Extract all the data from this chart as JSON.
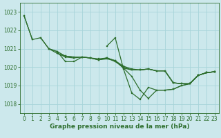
{
  "title": "Graphe pression niveau de la mer (hPa)",
  "background_color": "#cce8ec",
  "grid_color": "#a8d4da",
  "line_color": "#2d6e2d",
  "xlim": [
    -0.5,
    23.5
  ],
  "ylim": [
    1017.5,
    1023.5
  ],
  "yticks": [
    1018,
    1019,
    1020,
    1021,
    1022,
    1023
  ],
  "xticks": [
    0,
    1,
    2,
    3,
    4,
    5,
    6,
    7,
    8,
    9,
    10,
    11,
    12,
    13,
    14,
    15,
    16,
    17,
    18,
    19,
    20,
    21,
    22,
    23
  ],
  "series": [
    [
      1022.8,
      1021.5,
      null,
      null,
      null,
      null,
      null,
      null,
      null,
      null,
      null,
      null,
      null,
      null,
      null,
      null,
      null,
      null,
      null,
      null,
      null,
      null,
      null,
      null
    ],
    [
      null,
      null,
      1021.6,
      1021.0,
      1020.85,
      1020.3,
      1020.3,
      1020.55,
      1020.5,
      1020.45,
      1020.5,
      1020.3,
      1020.0,
      1019.85,
      1019.85,
      1019.9,
      1019.8,
      1019.8,
      1019.15,
      1019.1,
      1019.1,
      1019.55,
      1019.7,
      1019.75
    ],
    [
      null,
      null,
      null,
      1021.0,
      1020.75,
      1020.6,
      1020.55,
      1020.55,
      1020.5,
      1020.4,
      1020.45,
      1020.35,
      1020.05,
      1019.9,
      1019.85,
      1019.9,
      1019.8,
      1019.8,
      1019.15,
      1019.1,
      1019.1,
      1019.55,
      1019.7,
      1019.75
    ],
    [
      null,
      null,
      null,
      null,
      1020.75,
      1020.55,
      1020.5,
      1020.55,
      1020.5,
      1020.4,
      1020.5,
      1020.35,
      1019.95,
      1019.85,
      1019.85,
      1019.9,
      1019.8,
      1019.8,
      1019.15,
      1019.1,
      1019.1,
      1019.55,
      1019.7,
      1019.75
    ],
    [
      null,
      null,
      null,
      null,
      null,
      null,
      null,
      null,
      null,
      null,
      1021.15,
      1021.6,
      1019.9,
      1018.6,
      1018.25,
      1018.9,
      1018.75,
      1018.75,
      1018.8,
      1019.0,
      1019.1,
      1019.55,
      1019.7,
      1019.75
    ]
  ],
  "series2_start": [
    [
      1022.8,
      1021.5,
      1021.6,
      1021.0,
      1020.85,
      1020.6,
      1020.55,
      1020.55,
      1020.5,
      1020.4,
      1020.5,
      1020.35,
      1019.95,
      1019.5,
      1018.75,
      1018.3,
      1018.75,
      1018.75,
      1018.8,
      1019.0,
      1019.1,
      1019.55,
      1019.7,
      1019.75
    ]
  ],
  "marker_size": 2.0,
  "line_width": 0.9,
  "tick_fontsize": 5.5,
  "title_fontsize": 6.5,
  "title_color": "#2d6e2d",
  "tick_color": "#2d6e2d"
}
